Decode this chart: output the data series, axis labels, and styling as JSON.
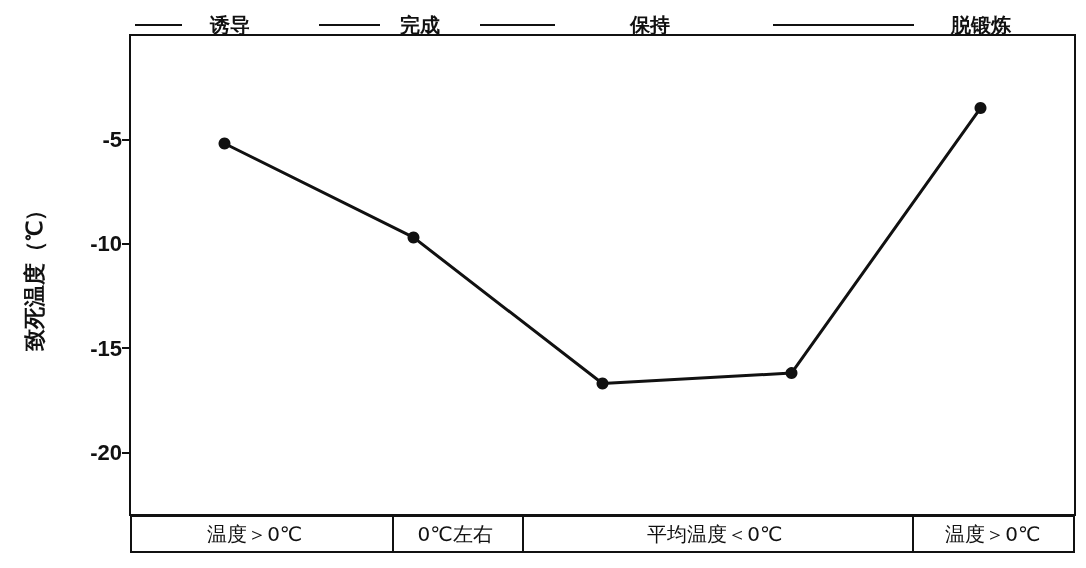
{
  "chart_data": {
    "type": "line",
    "ylabel": "致死温度（℃）",
    "categories": [
      null,
      null,
      null,
      null,
      null
    ],
    "values": [
      -5.2,
      -9.7,
      -16.7,
      -16.2,
      -3.5
    ],
    "color": "#111111",
    "marker": "circle",
    "line_style": "solid",
    "grid": false,
    "ylim": [
      -23,
      0
    ],
    "yticks": [
      -5,
      -10,
      -15,
      -20
    ],
    "annotations": [
      "诱导",
      "完成",
      "保持",
      "脱锻炼",
      "温度＞0℃",
      "0℃左右",
      "平均温度＜0℃",
      "温度＞0℃"
    ]
  }
}
